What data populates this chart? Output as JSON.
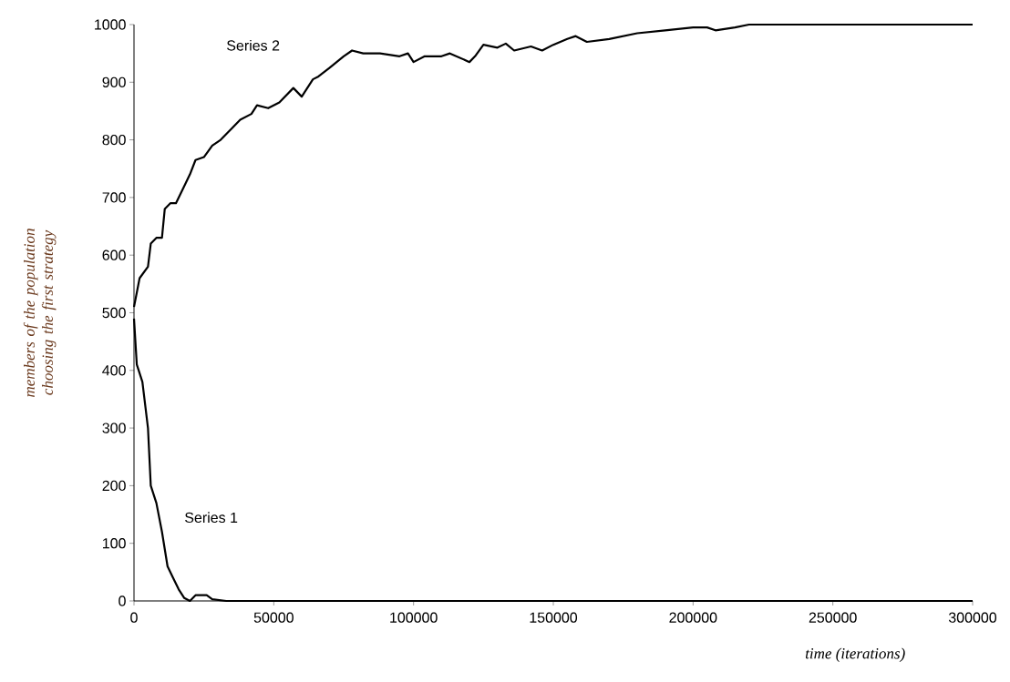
{
  "chart_data": {
    "type": "line",
    "xlabel": "time (iterations)",
    "ylabel": "members of the population choosing the first strategy",
    "xlim": [
      0,
      300000
    ],
    "ylim": [
      0,
      1000
    ],
    "xticks": [
      0,
      50000,
      100000,
      150000,
      200000,
      250000,
      300000
    ],
    "yticks": [
      0,
      100,
      200,
      300,
      400,
      500,
      600,
      700,
      800,
      900,
      1000
    ],
    "grid": false,
    "legend": false,
    "marker": "none",
    "line_style": "solid",
    "series": [
      {
        "name": "Series 1",
        "color": "#000000",
        "x": [
          0,
          1000,
          3000,
          5000,
          6000,
          8000,
          10000,
          12000,
          14000,
          16000,
          18000,
          20000,
          22000,
          26000,
          28000,
          33000,
          300000
        ],
        "values": [
          490,
          410,
          380,
          300,
          200,
          170,
          120,
          60,
          40,
          20,
          5,
          0,
          10,
          10,
          3,
          0,
          0
        ]
      },
      {
        "name": "Series 2",
        "color": "#000000",
        "x": [
          0,
          2000,
          5000,
          6000,
          8000,
          10000,
          11000,
          13000,
          15000,
          18000,
          20000,
          22000,
          25000,
          28000,
          31000,
          35000,
          38000,
          42000,
          44000,
          48000,
          52000,
          57000,
          60000,
          64000,
          66000,
          70000,
          75000,
          78000,
          82000,
          88000,
          95000,
          98000,
          100000,
          104000,
          110000,
          113000,
          120000,
          122000,
          125000,
          130000,
          133000,
          136000,
          142000,
          146000,
          150000,
          155000,
          158000,
          162000,
          170000,
          180000,
          190000,
          200000,
          205000,
          208000,
          215000,
          220000,
          300000
        ],
        "values": [
          510,
          560,
          580,
          620,
          630,
          630,
          680,
          690,
          690,
          720,
          740,
          765,
          770,
          790,
          800,
          820,
          835,
          845,
          860,
          855,
          865,
          890,
          875,
          905,
          910,
          925,
          945,
          955,
          950,
          950,
          945,
          950,
          935,
          945,
          945,
          950,
          935,
          945,
          965,
          960,
          967,
          955,
          962,
          955,
          965,
          975,
          980,
          970,
          975,
          985,
          990,
          995,
          995,
          990,
          995,
          1000,
          1000
        ]
      }
    ]
  }
}
